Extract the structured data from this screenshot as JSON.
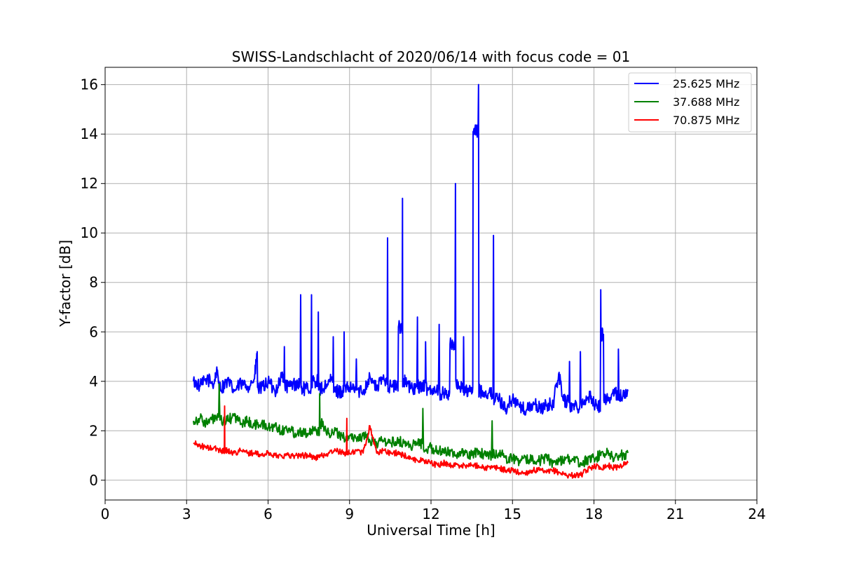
{
  "chart_data": {
    "type": "line",
    "title": "SWISS-Landschlacht of 2020/06/14 with focus code = 01",
    "xlabel": "Universal Time [h]",
    "ylabel": "Y-factor [dB]",
    "xlim": [
      0,
      24
    ],
    "ylim": [
      -0.8,
      16.7
    ],
    "xticks": [
      0,
      3,
      6,
      9,
      12,
      15,
      18,
      21,
      24
    ],
    "yticks": [
      0,
      2,
      4,
      6,
      8,
      10,
      12,
      14,
      16
    ],
    "grid": true,
    "legend_position": "top-right",
    "series": [
      {
        "name": "25.625 MHz",
        "color": "#0000ff",
        "x": [
          3.25,
          3.5,
          3.75,
          4.0,
          4.1,
          4.25,
          4.5,
          4.75,
          5.0,
          5.25,
          5.5,
          5.6,
          5.75,
          6.0,
          6.25,
          6.5,
          6.6,
          6.75,
          7.0,
          7.2,
          7.4,
          7.6,
          7.7,
          7.85,
          8.0,
          8.25,
          8.4,
          8.6,
          8.8,
          9.0,
          9.25,
          9.5,
          9.75,
          10.0,
          10.2,
          10.4,
          10.6,
          10.8,
          10.95,
          11.05,
          11.25,
          11.5,
          11.65,
          11.8,
          12.0,
          12.3,
          12.5,
          12.7,
          12.9,
          13.05,
          13.2,
          13.4,
          13.55,
          13.75,
          13.9,
          14.1,
          14.3,
          14.5,
          14.75,
          15.0,
          15.25,
          15.5,
          15.75,
          16.0,
          16.25,
          16.5,
          16.7,
          16.9,
          17.1,
          17.3,
          17.5,
          17.7,
          17.9,
          18.05,
          18.25,
          18.35,
          18.5,
          18.75,
          18.9,
          19.1,
          19.25
        ],
        "y": [
          4.0,
          3.8,
          4.1,
          3.9,
          4.4,
          3.7,
          4.0,
          3.6,
          3.9,
          3.8,
          4.1,
          5.2,
          3.7,
          4.0,
          3.6,
          4.2,
          5.4,
          3.8,
          3.9,
          7.5,
          3.7,
          7.5,
          4.0,
          6.8,
          3.7,
          4.0,
          5.8,
          3.6,
          6.0,
          3.7,
          4.9,
          3.6,
          4.2,
          3.7,
          4.1,
          9.8,
          3.8,
          6.2,
          11.4,
          4.0,
          3.7,
          6.6,
          3.8,
          5.6,
          3.7,
          6.3,
          3.5,
          5.5,
          12.0,
          3.8,
          5.8,
          3.6,
          14.1,
          16.0,
          3.6,
          3.5,
          9.9,
          3.3,
          2.9,
          3.3,
          3.0,
          2.8,
          3.1,
          2.9,
          3.0,
          3.1,
          4.3,
          3.2,
          4.8,
          3.0,
          5.2,
          3.2,
          3.4,
          3.0,
          7.7,
          5.9,
          3.3,
          3.5,
          5.3,
          3.4,
          3.6
        ]
      },
      {
        "name": "37.688 MHz",
        "color": "#008000",
        "x": [
          3.25,
          3.5,
          3.75,
          4.0,
          4.2,
          4.5,
          4.75,
          5.0,
          5.25,
          5.5,
          5.75,
          6.0,
          6.25,
          6.5,
          6.75,
          7.0,
          7.25,
          7.5,
          7.75,
          7.9,
          8.0,
          8.25,
          8.5,
          8.75,
          9.0,
          9.25,
          9.5,
          9.75,
          10.0,
          10.25,
          10.5,
          10.75,
          11.0,
          11.25,
          11.5,
          11.7,
          12.0,
          12.25,
          12.5,
          12.75,
          13.0,
          13.25,
          13.5,
          13.75,
          14.0,
          14.25,
          14.5,
          14.75,
          15.0,
          15.25,
          15.5,
          15.75,
          16.0,
          16.25,
          16.5,
          16.75,
          17.0,
          17.25,
          17.5,
          17.75,
          18.0,
          18.25,
          18.5,
          18.75,
          19.0,
          19.25
        ],
        "y": [
          2.4,
          2.5,
          2.3,
          2.5,
          3.9,
          2.4,
          2.6,
          2.3,
          2.4,
          2.2,
          2.3,
          2.1,
          2.2,
          2.0,
          2.1,
          1.9,
          2.0,
          1.9,
          2.0,
          3.5,
          2.3,
          1.9,
          2.0,
          1.7,
          1.8,
          1.7,
          1.8,
          1.6,
          1.5,
          1.6,
          1.5,
          1.6,
          1.5,
          1.4,
          1.5,
          2.9,
          1.3,
          1.2,
          1.1,
          1.2,
          1.0,
          1.1,
          1.0,
          1.2,
          1.0,
          2.4,
          1.1,
          0.9,
          0.9,
          0.8,
          0.8,
          0.9,
          0.8,
          0.9,
          0.7,
          0.8,
          0.9,
          0.8,
          0.7,
          0.8,
          0.9,
          1.0,
          1.1,
          0.9,
          1.0,
          1.1
        ]
      },
      {
        "name": "70.875 MHz",
        "color": "#ff0000",
        "x": [
          3.25,
          3.5,
          3.75,
          4.0,
          4.25,
          4.4,
          4.5,
          4.75,
          5.0,
          5.25,
          5.5,
          5.75,
          6.0,
          6.25,
          6.5,
          6.75,
          7.0,
          7.25,
          7.5,
          7.75,
          8.0,
          8.25,
          8.5,
          8.75,
          8.9,
          9.0,
          9.25,
          9.5,
          9.75,
          10.0,
          10.25,
          10.5,
          10.75,
          11.0,
          11.25,
          11.5,
          11.75,
          12.0,
          12.25,
          12.5,
          12.75,
          13.0,
          13.25,
          13.5,
          13.75,
          14.0,
          14.25,
          14.5,
          14.75,
          15.0,
          15.25,
          15.5,
          15.75,
          16.0,
          16.25,
          16.5,
          16.75,
          17.0,
          17.25,
          17.5,
          17.75,
          18.0,
          18.25,
          18.5,
          18.75,
          19.0,
          19.25
        ],
        "y": [
          1.5,
          1.4,
          1.3,
          1.3,
          1.2,
          3.0,
          1.2,
          1.1,
          1.2,
          1.1,
          1.1,
          1.0,
          1.1,
          1.0,
          1.0,
          1.0,
          1.0,
          1.0,
          1.0,
          0.9,
          1.0,
          1.1,
          1.2,
          1.1,
          2.5,
          1.1,
          1.2,
          1.1,
          2.2,
          1.1,
          1.2,
          1.1,
          1.1,
          1.0,
          0.9,
          0.8,
          0.8,
          0.7,
          0.6,
          0.7,
          0.6,
          0.6,
          0.6,
          0.6,
          0.6,
          0.5,
          0.5,
          0.5,
          0.4,
          0.4,
          0.3,
          0.3,
          0.4,
          0.4,
          0.3,
          0.4,
          0.3,
          0.2,
          0.2,
          0.2,
          0.4,
          0.6,
          0.5,
          0.6,
          0.5,
          0.6,
          0.7
        ]
      }
    ]
  }
}
